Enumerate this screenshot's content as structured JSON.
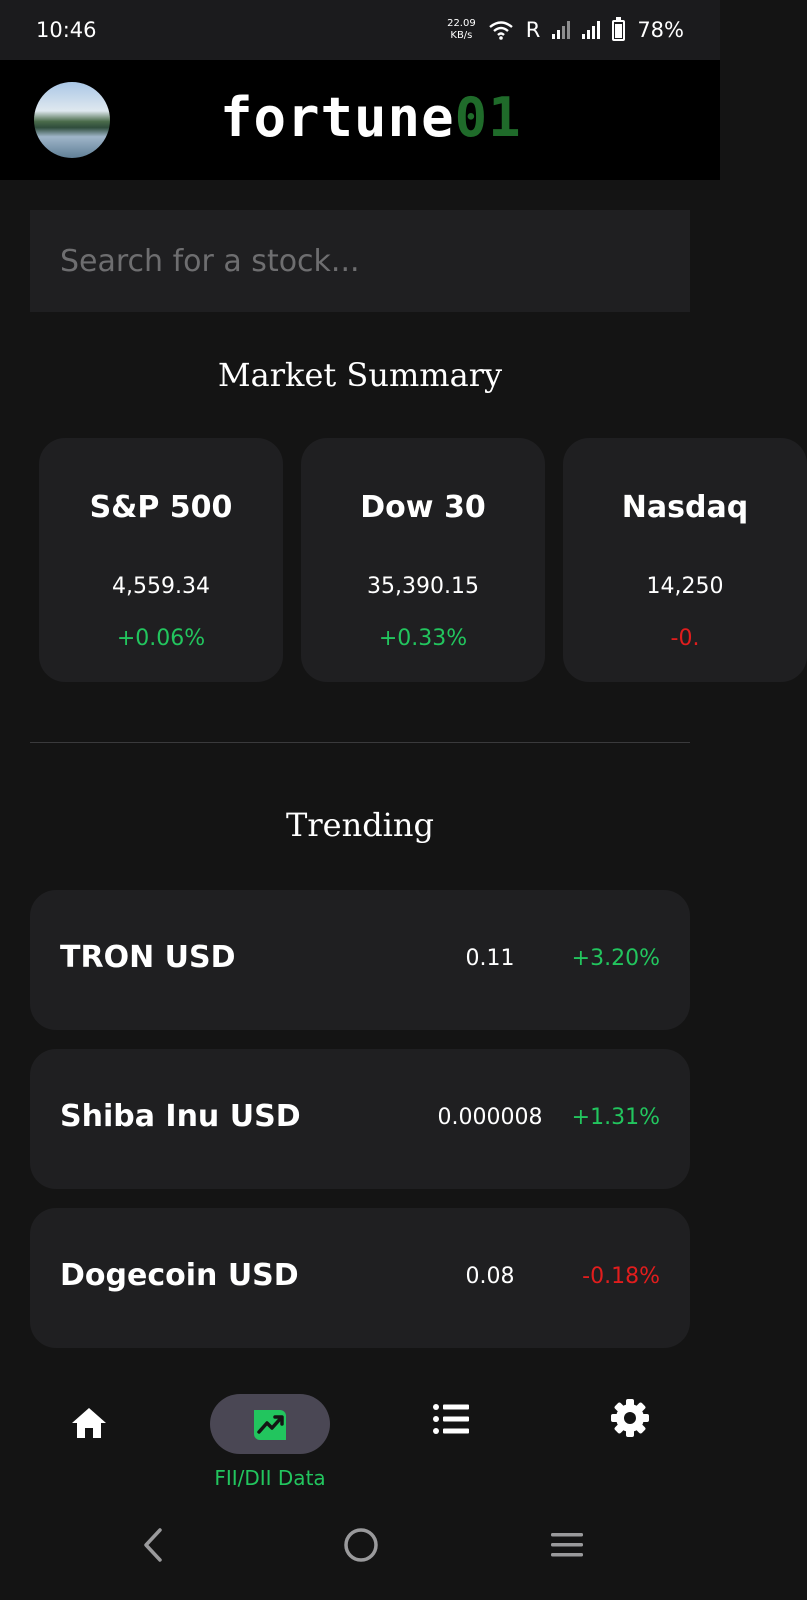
{
  "status_bar": {
    "time": "10:46",
    "net_speed_value": "22.09",
    "net_speed_unit": "KB/s",
    "roaming": "R",
    "battery": "78%"
  },
  "header": {
    "brand_main": "fortune",
    "brand_accent": "01"
  },
  "search": {
    "placeholder": "Search for a stock..."
  },
  "market_summary": {
    "title": "Market Summary",
    "cards": [
      {
        "name": "S&P 500",
        "price": "4,559.34",
        "change": "+0.06%",
        "direction": "up"
      },
      {
        "name": "Dow 30",
        "price": "35,390.15",
        "change": "+0.33%",
        "direction": "up"
      },
      {
        "name": "Nasdaq",
        "price": "14,250",
        "change": "-0.",
        "direction": "down"
      }
    ]
  },
  "trending": {
    "title": "Trending",
    "items": [
      {
        "name": "TRON USD",
        "price": "0.11",
        "change": "+3.20%",
        "direction": "up"
      },
      {
        "name": "Shiba Inu USD",
        "price": "0.000008",
        "change": "+1.31%",
        "direction": "up"
      },
      {
        "name": "Dogecoin USD",
        "price": "0.08",
        "change": "-0.18%",
        "direction": "down"
      }
    ]
  },
  "bottom_nav": {
    "active_label": "FII/DII Data",
    "items": [
      "home-icon",
      "chart-icon",
      "list-icon",
      "settings-icon"
    ]
  },
  "colors": {
    "positive": "#22c55e",
    "negative": "#e11d1d",
    "brand_accent": "#1f6b2a",
    "active_pill": "#4a4754"
  }
}
